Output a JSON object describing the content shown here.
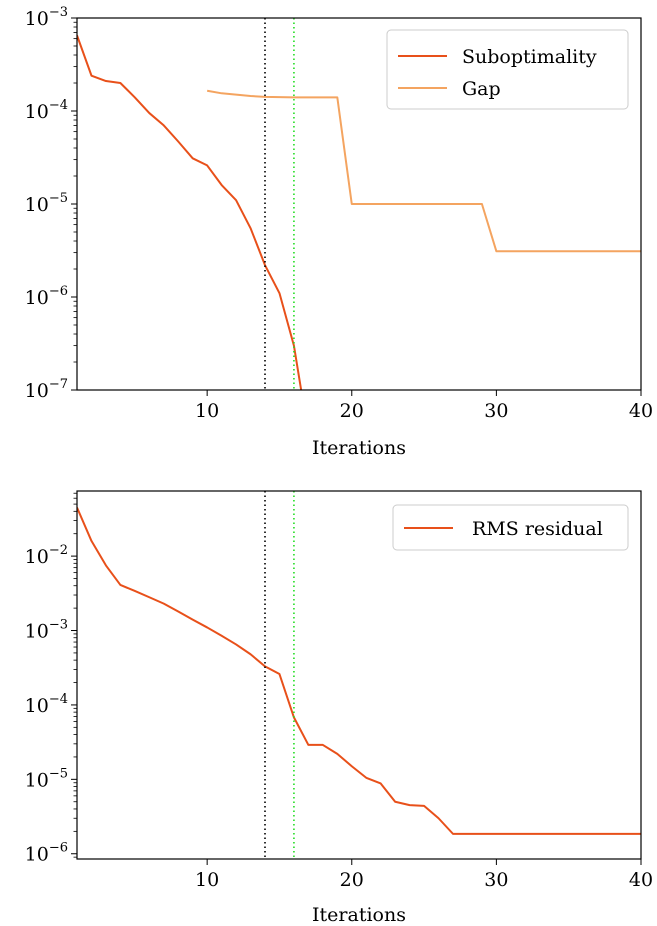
{
  "chart_data": [
    {
      "type": "line",
      "yscale": "log",
      "xlim": [
        1,
        40
      ],
      "ylim": [
        1e-07,
        0.001
      ],
      "xlabel": "Iterations",
      "ylabel": "",
      "xticks": [
        10,
        20,
        30,
        40
      ],
      "yticks": [
        {
          "value": 1e-07,
          "base": "10",
          "exp": "−7"
        },
        {
          "value": 1e-06,
          "base": "10",
          "exp": "−6"
        },
        {
          "value": 1e-05,
          "base": "10",
          "exp": "−5"
        },
        {
          "value": 0.0001,
          "base": "10",
          "exp": "−4"
        },
        {
          "value": 0.001,
          "base": "10",
          "exp": "−3"
        }
      ],
      "grid": false,
      "legend": "top-right",
      "vlines": [
        {
          "x": 14,
          "color": "#000000",
          "style": "dotted"
        },
        {
          "x": 16,
          "color": "#22dd22",
          "style": "dotted"
        }
      ],
      "series": [
        {
          "name": "Suboptimality",
          "color": "#e8501a",
          "x": [
            1,
            2,
            3,
            4,
            5,
            6,
            7,
            8,
            9,
            10,
            11,
            12,
            13,
            14,
            15,
            16,
            16.5
          ],
          "y": [
            0.00065,
            0.00024,
            0.00021,
            0.0002,
            0.00014,
            9.5e-05,
            7e-05,
            4.7e-05,
            3.1e-05,
            2.6e-05,
            1.6e-05,
            1.1e-05,
            5.5e-06,
            2.2e-06,
            1.1e-06,
            3e-07,
            1e-07
          ]
        },
        {
          "name": "Gap",
          "color": "#f4a460",
          "x": [
            10,
            11,
            12,
            13,
            14,
            15,
            16,
            17,
            18,
            19,
            20,
            21,
            22,
            23,
            24,
            25,
            26,
            27,
            28,
            29,
            30,
            31,
            32,
            33,
            34,
            35,
            36,
            37,
            38,
            39,
            40
          ],
          "y": [
            0.000165,
            0.000155,
            0.00015,
            0.000145,
            0.000142,
            0.000141,
            0.00014,
            0.00014,
            0.00014,
            0.00014,
            1e-05,
            1e-05,
            1e-05,
            1e-05,
            1e-05,
            1e-05,
            1e-05,
            1e-05,
            1e-05,
            1e-05,
            3.1e-06,
            3.1e-06,
            3.1e-06,
            3.1e-06,
            3.1e-06,
            3.1e-06,
            3.1e-06,
            3.1e-06,
            3.1e-06,
            3.1e-06,
            3.1e-06
          ]
        }
      ]
    },
    {
      "type": "line",
      "yscale": "log",
      "xlim": [
        1,
        40
      ],
      "ylim": [
        8.5e-07,
        0.075
      ],
      "xlabel": "Iterations",
      "ylabel": "",
      "xticks": [
        10,
        20,
        30,
        40
      ],
      "yticks": [
        {
          "value": 1e-06,
          "base": "10",
          "exp": "−6"
        },
        {
          "value": 1e-05,
          "base": "10",
          "exp": "−5"
        },
        {
          "value": 0.0001,
          "base": "10",
          "exp": "−4"
        },
        {
          "value": 0.001,
          "base": "10",
          "exp": "−3"
        },
        {
          "value": 0.01,
          "base": "10",
          "exp": "−2"
        }
      ],
      "grid": false,
      "legend": "top-right",
      "vlines": [
        {
          "x": 14,
          "color": "#000000",
          "style": "dotted"
        },
        {
          "x": 16,
          "color": "#22dd22",
          "style": "dotted"
        }
      ],
      "series": [
        {
          "name": "RMS residual",
          "color": "#e8501a",
          "x": [
            1,
            2,
            3,
            4,
            5,
            6,
            7,
            8,
            9,
            10,
            11,
            12,
            13,
            14,
            15,
            16,
            17,
            18,
            19,
            20,
            21,
            22,
            23,
            24,
            25,
            26,
            27,
            28,
            29,
            30,
            31,
            32,
            33,
            34,
            35,
            36,
            37,
            38,
            39,
            40
          ],
          "y": [
            0.045,
            0.016,
            0.0075,
            0.0041,
            0.0034,
            0.0028,
            0.0023,
            0.0018,
            0.0014,
            0.0011,
            0.00085,
            0.00065,
            0.00048,
            0.00033,
            0.00026,
            6.8e-05,
            2.9e-05,
            2.9e-05,
            2.2e-05,
            1.5e-05,
            1.05e-05,
            8.8e-06,
            5e-06,
            4.5e-06,
            4.4e-06,
            3e-06,
            1.85e-06,
            1.85e-06,
            1.85e-06,
            1.85e-06,
            1.85e-06,
            1.85e-06,
            1.85e-06,
            1.85e-06,
            1.85e-06,
            1.85e-06,
            1.85e-06,
            1.85e-06,
            1.85e-06,
            1.85e-06
          ]
        }
      ]
    }
  ]
}
